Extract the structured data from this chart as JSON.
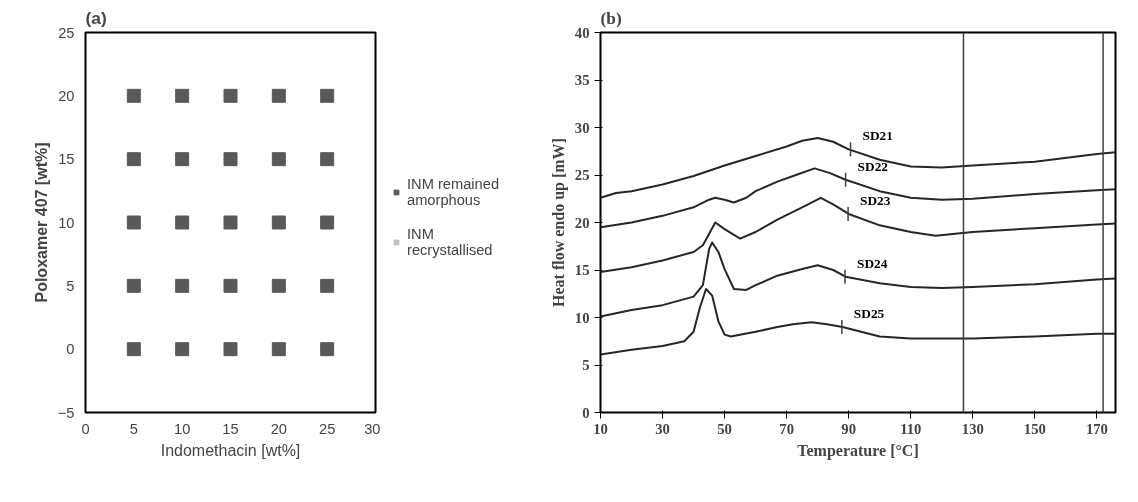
{
  "chart_data": [
    {
      "type": "scatter",
      "title": "(a)",
      "xlabel": "Indomethacin [wt%]",
      "ylabel": "Poloxamer 407 [wt%]",
      "xlim": [
        0,
        30
      ],
      "ylim": [
        -5,
        25
      ],
      "xticks": [
        0,
        5,
        10,
        15,
        20,
        25,
        30
      ],
      "yticks": [
        -5,
        0,
        5,
        10,
        15,
        20,
        25
      ],
      "grid": false,
      "marker": "square",
      "legend": "right",
      "series": [
        {
          "name": "INM remained amorphous",
          "color": "#595959",
          "x": [
            5,
            10,
            15,
            20,
            25,
            5,
            10,
            15,
            20,
            25,
            5,
            10,
            15,
            20,
            25,
            5,
            10,
            15,
            20,
            25,
            5,
            10,
            15,
            20,
            25
          ],
          "values": [
            0,
            0,
            0,
            0,
            0,
            5,
            5,
            5,
            5,
            5,
            10,
            10,
            10,
            10,
            10,
            15,
            15,
            15,
            15,
            15,
            20,
            20,
            20,
            20,
            20
          ]
        },
        {
          "name": "INM recrystallised",
          "color": "#bfbfbf"
        }
      ]
    },
    {
      "type": "line",
      "title": "(b)",
      "xlabel": "Temperature [°C]",
      "ylabel": "Heat flow endo up [mW]",
      "xlim": [
        10,
        176
      ],
      "ylim": [
        0,
        40
      ],
      "xticks": [
        10,
        30,
        50,
        70,
        90,
        110,
        130,
        150,
        170
      ],
      "yticks": [
        0,
        5,
        10,
        15,
        20,
        25,
        30,
        35,
        40
      ],
      "grid": false,
      "legend": false,
      "marker": "none",
      "line_style": "solid",
      "series": [
        {
          "color": "#262626",
          "x": [
            10,
            15,
            20,
            30,
            40,
            50,
            60,
            70,
            75,
            80,
            85,
            90,
            100,
            110,
            120,
            130,
            150,
            170,
            176
          ],
          "values": [
            22.6,
            23.1,
            23.3,
            24.0,
            24.9,
            26.0,
            27.0,
            28.0,
            28.6,
            28.9,
            28.5,
            27.7,
            26.6,
            25.9,
            25.8,
            26.0,
            26.4,
            27.2,
            27.4
          ]
        },
        {
          "color": "#262626",
          "x": [
            10,
            20,
            30,
            40,
            45,
            47,
            50,
            53,
            57,
            60,
            67,
            73,
            79,
            84,
            89,
            100,
            110,
            120,
            130,
            150,
            170,
            176
          ],
          "values": [
            19.5,
            20.0,
            20.7,
            21.6,
            22.4,
            22.6,
            22.4,
            22.1,
            22.6,
            23.3,
            24.3,
            25.0,
            25.7,
            25.2,
            24.5,
            23.3,
            22.6,
            22.4,
            22.5,
            23.0,
            23.4,
            23.5
          ]
        },
        {
          "color": "#262626",
          "x": [
            10,
            20,
            30,
            40,
            43,
            47,
            50,
            55,
            60,
            67,
            75,
            81,
            85,
            90,
            100,
            110,
            118,
            130,
            150,
            170,
            176
          ],
          "values": [
            14.8,
            15.3,
            16.0,
            16.9,
            17.6,
            20.0,
            19.3,
            18.3,
            19.0,
            20.3,
            21.6,
            22.6,
            21.9,
            20.9,
            19.7,
            19.0,
            18.6,
            19.0,
            19.4,
            19.8,
            19.9
          ]
        },
        {
          "color": "#262626",
          "x": [
            10,
            20,
            30,
            40,
            43,
            45,
            46,
            48,
            50,
            53,
            57,
            60,
            67,
            75,
            80,
            85,
            89,
            100,
            110,
            120,
            130,
            150,
            170,
            176
          ],
          "values": [
            10.1,
            10.8,
            11.3,
            12.2,
            13.4,
            17.2,
            17.9,
            16.9,
            15.1,
            13.0,
            12.9,
            13.4,
            14.4,
            15.1,
            15.5,
            15.0,
            14.3,
            13.6,
            13.2,
            13.1,
            13.2,
            13.5,
            14.0,
            14.1
          ]
        },
        {
          "color": "#262626",
          "x": [
            10,
            20,
            30,
            37,
            40,
            42,
            44,
            46,
            48,
            50,
            52,
            60,
            67,
            72,
            78,
            83,
            88,
            100,
            110,
            120,
            130,
            150,
            170,
            176
          ],
          "values": [
            6.1,
            6.6,
            7.0,
            7.5,
            8.5,
            11.0,
            13.0,
            12.3,
            9.6,
            8.2,
            8.0,
            8.5,
            9.0,
            9.3,
            9.5,
            9.3,
            9.0,
            8.0,
            7.8,
            7.8,
            7.8,
            8.0,
            8.3,
            8.3
          ]
        }
      ],
      "ref_lines": [
        {
          "axis": "x",
          "value": 127,
          "color": "#404040"
        },
        {
          "axis": "x",
          "value": 172,
          "color": "#404040"
        }
      ],
      "annotations": [
        {
          "text": "SD21",
          "x": 90.6,
          "y": 27.7
        },
        {
          "text": "SD22",
          "x": 89,
          "y": 24.5
        },
        {
          "text": "SD23",
          "x": 89.8,
          "y": 20.9
        },
        {
          "text": "SD24",
          "x": 88.8,
          "y": 14.3
        },
        {
          "text": "SD25",
          "x": 87.8,
          "y": 9.0
        }
      ]
    }
  ]
}
